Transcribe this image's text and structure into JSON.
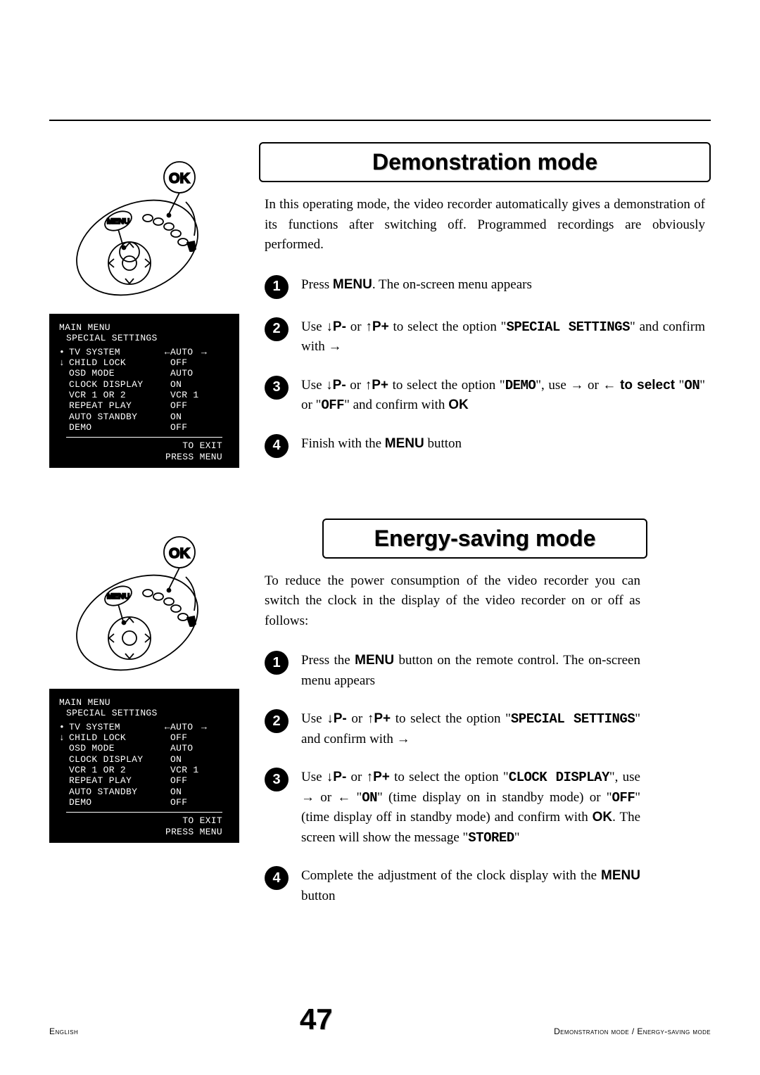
{
  "colors": {
    "text": "#000000",
    "background": "#ffffff",
    "osd_bg": "#000000",
    "osd_fg": "#ffffff",
    "step_bg": "#000000",
    "step_fg": "#ffffff"
  },
  "remote": {
    "ok_label": "OK",
    "menu_label": "MENU"
  },
  "osd": {
    "header1": "MAIN MENU",
    "header2": "SPECIAL SETTINGS",
    "left_marker_dot": "•",
    "left_marker_down": "↓",
    "rows": [
      {
        "label": "TV SYSTEM",
        "pre": "←",
        "value": "AUTO",
        "post": "→"
      },
      {
        "label": "CHILD LOCK",
        "pre": "",
        "value": "OFF",
        "post": ""
      },
      {
        "label": "OSD MODE",
        "pre": "",
        "value": "AUTO",
        "post": ""
      },
      {
        "label": "CLOCK DISPLAY",
        "pre": "",
        "value": "ON",
        "post": ""
      },
      {
        "label": "VCR 1 OR 2",
        "pre": "",
        "value": "VCR 1",
        "post": ""
      },
      {
        "label": "REPEAT PLAY",
        "pre": "",
        "value": "OFF",
        "post": ""
      },
      {
        "label": "AUTO STANDBY",
        "pre": "",
        "value": "ON",
        "post": ""
      },
      {
        "label": "DEMO",
        "pre": "",
        "value": "OFF",
        "post": ""
      }
    ],
    "exit1": "TO EXIT",
    "exit2": "PRESS MENU"
  },
  "section1": {
    "title": "Demonstration mode",
    "intro": "In this operating mode, the video recorder automatically gives a demonstration of its functions after switching off. Programmed recordings are obviously performed.",
    "steps": {
      "s1_a": "Press ",
      "s1_b": "MENU",
      "s1_c": ". The on-screen menu appears",
      "s2_a": "Use ↓",
      "s2_b": "P-",
      "s2_c": " or ↑",
      "s2_d": "P+",
      "s2_e": " to select the option \"",
      "s2_f": "SPECIAL SETTINGS",
      "s2_g": "\" and confirm with →",
      "s3_a": "Use ↓",
      "s3_b": "P-",
      "s3_c": " or ↑",
      "s3_d": "P+",
      "s3_e": " to select the option \"",
      "s3_f": "DEMO",
      "s3_g": "\", use → or ← ",
      "s3_h": "to select",
      "s3_i": " \"",
      "s3_j": "ON",
      "s3_k": "\" or \"",
      "s3_l": "OFF",
      "s3_m": "\" and confirm with ",
      "s3_n": "OK",
      "s4_a": "Finish with the ",
      "s4_b": "MENU",
      "s4_c": " button"
    }
  },
  "section2": {
    "title": "Energy-saving mode",
    "intro": "To reduce the power consumption of the video recorder you can switch the clock in the display of the video recorder on or off as follows:",
    "steps": {
      "s1_a": "Press the ",
      "s1_b": "MENU",
      "s1_c": " button on the remote control. The on-screen menu appears",
      "s2_a": "Use ↓",
      "s2_b": "P-",
      "s2_c": " or ↑",
      "s2_d": "P+",
      "s2_e": " to select the option \"",
      "s2_f": "SPECIAL SETTINGS",
      "s2_g": "\" and confirm with →",
      "s3_a": "Use ↓",
      "s3_b": "P-",
      "s3_c": " or ↑",
      "s3_d": "P+",
      "s3_e": " to select the option \"",
      "s3_f": "CLOCK DISPLAY",
      "s3_g": "\", use →  or ←   \"",
      "s3_h": "ON",
      "s3_i": "\" (time display on in standby mode) or \"",
      "s3_j": "OFF",
      "s3_k": "\" (time display off in standby mode) and confirm with ",
      "s3_l": "OK",
      "s3_m": ". The screen will show the message \"",
      "s3_n": "STORED",
      "s3_o": "\"",
      "s4_a": "Complete the adjustment of the clock display with the ",
      "s4_b": "MENU",
      "s4_c": " button"
    }
  },
  "footer": {
    "left": "English",
    "page": "47",
    "right": "Demonstration mode / Energy-saving mode"
  }
}
